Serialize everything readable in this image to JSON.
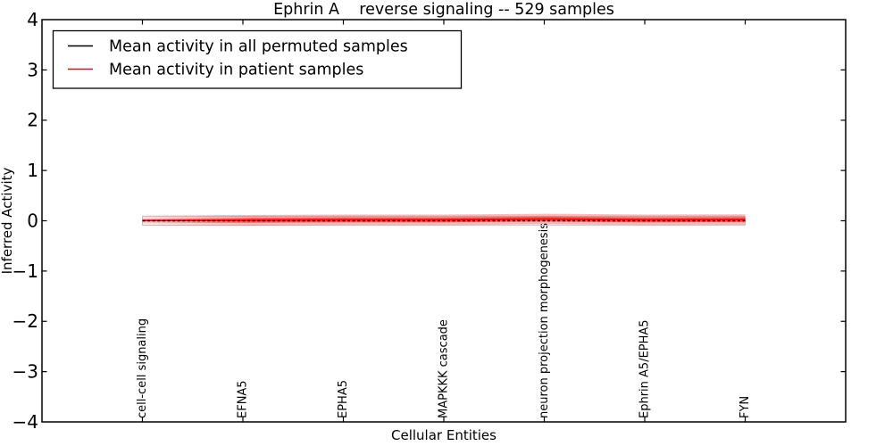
{
  "title": "Ephrin A    reverse signaling -- 529 samples",
  "axes": {
    "xlabel": "Cellular Entities",
    "ylabel": "Inferred Activity",
    "yticks": [
      "4",
      "3",
      "2",
      "1",
      "0",
      "−1",
      "−2",
      "−3",
      "−4"
    ]
  },
  "legend": {
    "items": [
      {
        "label": "Mean activity in all permuted samples",
        "color": "#000000"
      },
      {
        "label": "Mean activity in patient samples",
        "color": "#ff0000"
      }
    ]
  },
  "chart_data": {
    "type": "line",
    "title": "Ephrin A    reverse signaling -- 529 samples",
    "xlabel": "Cellular Entities",
    "ylabel": "Inferred Activity",
    "ylim": [
      -4,
      4
    ],
    "grid": false,
    "legend_position": "upper left",
    "categories": [
      "cell-cell signaling",
      "EFNA5",
      "EPHA5",
      "MAPKKK cascade",
      "neuron projection morphogenesis",
      "Ephrin A5/EPHA5",
      "FYN"
    ],
    "series": [
      {
        "name": "Mean activity in all permuted samples",
        "color": "#000000",
        "line_style": "dashed",
        "values": [
          0,
          0,
          0,
          0,
          0,
          0,
          0
        ]
      },
      {
        "name": "Mean activity in patient samples",
        "color": "#ff0000",
        "line_style": "solid",
        "values": [
          0.005,
          0.01,
          0.02,
          0.02,
          0.035,
          0.02,
          0.025
        ]
      }
    ],
    "bands": {
      "permuted_halfwidth": 0.09,
      "patient_outer_halfwidth": 0.105,
      "patient_inner_halfwidth": 0.05
    }
  },
  "colors": {
    "patient": "#ff0000",
    "permuted": "#000000",
    "band_edge": "#c9c9c9",
    "background": "#ffffff",
    "frame": "#000000"
  }
}
